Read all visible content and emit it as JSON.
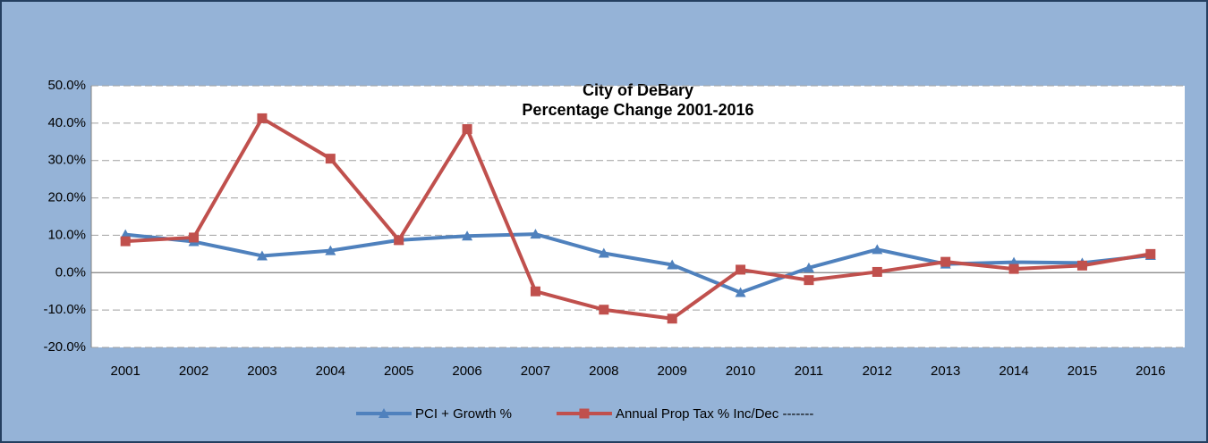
{
  "chart_data": {
    "type": "line",
    "title": "City of DeBary",
    "subtitle": "Percentage Change 2001-2016",
    "categories": [
      "2001",
      "2002",
      "2003",
      "2004",
      "2005",
      "2006",
      "2007",
      "2008",
      "2009",
      "2010",
      "2011",
      "2012",
      "2013",
      "2014",
      "2015",
      "2016"
    ],
    "series": [
      {
        "name": "PCI + Growth %",
        "color": "#4f81bd",
        "marker": "triangle",
        "values": [
          10.2,
          8.3,
          4.5,
          5.9,
          8.7,
          9.8,
          10.3,
          5.2,
          2.1,
          -5.3,
          1.3,
          6.2,
          2.3,
          2.8,
          2.6,
          4.6
        ]
      },
      {
        "name": "Annual Prop Tax % Inc/Dec -------",
        "color": "#c0504d",
        "marker": "square",
        "values": [
          8.4,
          9.4,
          41.3,
          30.5,
          8.7,
          38.4,
          -5.0,
          -9.9,
          -12.3,
          0.8,
          -2.0,
          0.2,
          2.9,
          1.0,
          1.9,
          5.0
        ]
      }
    ],
    "ylim": [
      -20,
      50
    ],
    "yticks": [
      {
        "value": -20,
        "label": "-20.0%"
      },
      {
        "value": -10,
        "label": "-10.0%"
      },
      {
        "value": 0,
        "label": "0.0%"
      },
      {
        "value": 10,
        "label": "10.0%"
      },
      {
        "value": 20,
        "label": "20.0%"
      },
      {
        "value": 30,
        "label": "30.0%"
      },
      {
        "value": 40,
        "label": "40.0%"
      },
      {
        "value": 50,
        "label": "50.0%"
      }
    ],
    "grid": true,
    "legend": "bottom"
  }
}
